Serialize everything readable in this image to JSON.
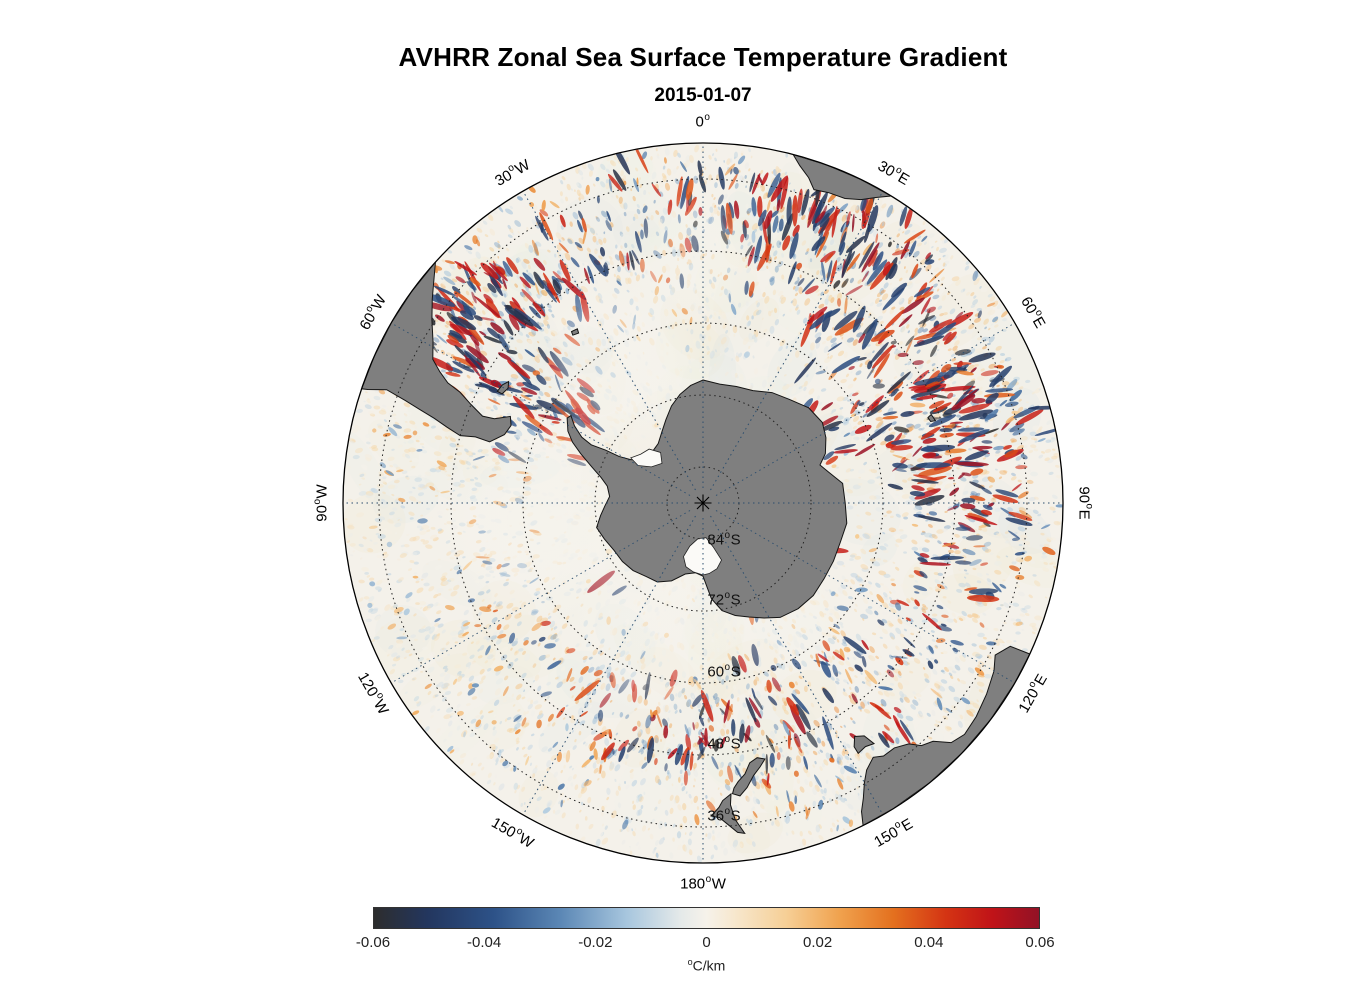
{
  "header": {
    "title": "AVHRR Zonal Sea Surface Temperature Gradient",
    "subtitle": "2015-01-07"
  },
  "chart_data": {
    "type": "heatmap",
    "title": "AVHRR Zonal Sea Surface Temperature Gradient",
    "subtitle": "2015-01-07",
    "projection": {
      "name": "south-polar-azimuthal-equidistant",
      "outer_lat_deg": -30,
      "lat_ring_spacing_deg": 12,
      "lon_spacing_deg": 30
    },
    "grid": {
      "lat_rings": [
        {
          "lat": -84,
          "label": "84°S"
        },
        {
          "lat": -72,
          "label": "72°S"
        },
        {
          "lat": -60,
          "label": "60°S"
        },
        {
          "lat": -48,
          "label": "48°S"
        },
        {
          "lat": -36,
          "label": "36°S"
        }
      ],
      "lon_labels": [
        {
          "deg": 0,
          "label": "0°"
        },
        {
          "deg": 30,
          "label": "30°E"
        },
        {
          "deg": 60,
          "label": "60°E"
        },
        {
          "deg": 90,
          "label": "90°E"
        },
        {
          "deg": 120,
          "label": "120°E"
        },
        {
          "deg": 150,
          "label": "150°E"
        },
        {
          "deg": 180,
          "label": "180°W"
        },
        {
          "deg": -150,
          "label": "150°W"
        },
        {
          "deg": -120,
          "label": "120°W"
        },
        {
          "deg": -90,
          "label": "90°W"
        },
        {
          "deg": -60,
          "label": "60°W"
        },
        {
          "deg": -30,
          "label": "30°W"
        }
      ],
      "meridian_color": "#2c4e6e",
      "ring_color": "#222222"
    },
    "colorbar": {
      "min": -0.06,
      "max": 0.06,
      "ticks": [
        "-0.06",
        "-0.04",
        "-0.02",
        "0",
        "0.02",
        "0.04",
        "0.06"
      ],
      "unit_sup": "o",
      "unit_main": "C/km",
      "stops": [
        [
          0.0,
          "#2d2d2d"
        ],
        [
          0.08,
          "#23365e"
        ],
        [
          0.18,
          "#2d5288"
        ],
        [
          0.28,
          "#5b87b5"
        ],
        [
          0.38,
          "#a7c6de"
        ],
        [
          0.46,
          "#e4e9e9"
        ],
        [
          0.5,
          "#f6f2ea"
        ],
        [
          0.54,
          "#f7e8cf"
        ],
        [
          0.62,
          "#f6cf96"
        ],
        [
          0.7,
          "#f0a24e"
        ],
        [
          0.78,
          "#e4711f"
        ],
        [
          0.86,
          "#d43413"
        ],
        [
          0.93,
          "#c01318"
        ],
        [
          1.0,
          "#921226"
        ]
      ]
    },
    "field": {
      "description": "Zonal SST gradient speckle field, diverging red/blue about zero",
      "seed": 20150107,
      "base": 0.3,
      "activity_zones": [
        {
          "name": "agulhas-return",
          "lon": 42,
          "lon_sigma": 28,
          "lat": -44,
          "lat_sigma": 7,
          "strength": 0.95
        },
        {
          "name": "southwest-indian",
          "lon": 68,
          "lon_sigma": 20,
          "lat": -51,
          "lat_sigma": 8,
          "strength": 0.7
        },
        {
          "name": "brazil-malvinas",
          "lon": -52,
          "lon_sigma": 9,
          "lat": -41,
          "lat_sigma": 6,
          "strength": 1.0
        },
        {
          "name": "drake-passage",
          "lon": -60,
          "lon_sigma": 11,
          "lat": -59,
          "lat_sigma": 5,
          "strength": 0.65
        },
        {
          "name": "pacific-antarctic",
          "lon": -140,
          "lon_sigma": 35,
          "lat": -57,
          "lat_sigma": 7,
          "strength": 0.35
        },
        {
          "name": "campbell-plateau",
          "lon": 172,
          "lon_sigma": 30,
          "lat": -52,
          "lat_sigma": 8,
          "strength": 0.5
        },
        {
          "name": "tasman-south",
          "lon": 140,
          "lon_sigma": 22,
          "lat": -48,
          "lat_sigma": 7,
          "strength": 0.45
        },
        {
          "name": "kerguelen-plateau",
          "lon": 78,
          "lon_sigma": 14,
          "lat": -46,
          "lat_sigma": 6,
          "strength": 0.6
        },
        {
          "name": "south-atlantic-mid",
          "lon": -20,
          "lon_sigma": 25,
          "lat": -42,
          "lat_sigma": 7,
          "strength": 0.45
        },
        {
          "name": "agulhas-south",
          "lon": 25,
          "lon_sigma": 15,
          "lat": -40,
          "lat_sigma": 5,
          "strength": 0.7
        }
      ],
      "pale_regions": [
        {
          "name": "bellingshausen-ice",
          "lon": -95,
          "lat": -63,
          "radius_px": 105,
          "alpha": 0.5
        },
        {
          "name": "ross-sea-ice",
          "lon": -160,
          "lat": -67,
          "radius_px": 85,
          "alpha": 0.4
        },
        {
          "name": "weddell-ice",
          "lon": -32,
          "lat": -63,
          "radius_px": 85,
          "alpha": 0.45
        },
        {
          "name": "east-antarctic-ice",
          "lon": 150,
          "lat": -68,
          "radius_px": 70,
          "alpha": 0.3
        },
        {
          "name": "polar-interior",
          "lon": 0,
          "lat": -90,
          "radius_px": 150,
          "alpha": 0.28
        },
        {
          "name": "greenwich-quiet",
          "lon": -2,
          "lat": -50,
          "radius_px": 70,
          "alpha": 0.35
        }
      ]
    },
    "land": {
      "fill": "#7f7f7f",
      "stroke": "#141414",
      "ocean": "#f4f1ea",
      "features": [
        {
          "name": "antarctica",
          "points": [
            [
              0,
              -69.5
            ],
            [
              8,
              -70
            ],
            [
              16,
              -69.8
            ],
            [
              24,
              -69.5
            ],
            [
              32,
              -68.3
            ],
            [
              40,
              -67.5
            ],
            [
              48,
              -66.3
            ],
            [
              56,
              -66
            ],
            [
              62,
              -66.8
            ],
            [
              68,
              -68
            ],
            [
              72,
              -69.5
            ],
            [
              76,
              -68.5
            ],
            [
              82,
              -66.5
            ],
            [
              90,
              -66.3
            ],
            [
              98,
              -65.8
            ],
            [
              106,
              -66.2
            ],
            [
              114,
              -66.2
            ],
            [
              122,
              -66.2
            ],
            [
              130,
              -66
            ],
            [
              138,
              -66.3
            ],
            [
              146,
              -67
            ],
            [
              152,
              -68.3
            ],
            [
              158,
              -69.5
            ],
            [
              164,
              -70.5
            ],
            [
              170,
              -71.8
            ],
            [
              175,
              -74
            ],
            [
              180,
              -77.8
            ],
            [
              -174,
              -78.3
            ],
            [
              -166,
              -77.8
            ],
            [
              -158,
              -76
            ],
            [
              -150,
              -74.8
            ],
            [
              -142,
              -74.5
            ],
            [
              -134,
              -73.8
            ],
            [
              -126,
              -73.4
            ],
            [
              -118,
              -73.2
            ],
            [
              -110,
              -72.5
            ],
            [
              -103,
              -71.8
            ],
            [
              -97,
              -72.8
            ],
            [
              -92,
              -73.6
            ],
            [
              -86,
              -74.4
            ],
            [
              -80,
              -73.8
            ],
            [
              -76,
              -72.5
            ],
            [
              -72,
              -70.5
            ],
            [
              -68,
              -68
            ],
            [
              -65,
              -66
            ],
            [
              -62,
              -64.5
            ],
            [
              -58,
              -63.3
            ],
            [
              -56.5,
              -63.6
            ],
            [
              -59,
              -65
            ],
            [
              -61.5,
              -67
            ],
            [
              -62.5,
              -69
            ],
            [
              -61.5,
              -71.5
            ],
            [
              -61,
              -74
            ],
            [
              -59,
              -76
            ],
            [
              -53,
              -77.5
            ],
            [
              -45,
              -78
            ],
            [
              -37,
              -77.6
            ],
            [
              -30,
              -76.3
            ],
            [
              -24,
              -74.8
            ],
            [
              -18,
              -73
            ],
            [
              -12,
              -71.5
            ],
            [
              -6,
              -70.3
            ]
          ]
        },
        {
          "name": "south-america",
          "points": [
            [
              -48,
              -30
            ],
            [
              -50,
              -31.5
            ],
            [
              -53,
              -33.5
            ],
            [
              -56,
              -35.5
            ],
            [
              -59,
              -37.5
            ],
            [
              -62,
              -39
            ],
            [
              -63.5,
              -41
            ],
            [
              -64.8,
              -43
            ],
            [
              -65.5,
              -45.5
            ],
            [
              -67,
              -48
            ],
            [
              -68.5,
              -50.5
            ],
            [
              -68,
              -52.5
            ],
            [
              -65.8,
              -54.8
            ],
            [
              -68,
              -55.5
            ],
            [
              -71,
              -55
            ],
            [
              -74,
              -53
            ],
            [
              -73.8,
              -50.5
            ],
            [
              -74.5,
              -48
            ],
            [
              -73.5,
              -45.5
            ],
            [
              -72.5,
              -43
            ],
            [
              -71.8,
              -40.5
            ],
            [
              -71,
              -37.5
            ],
            [
              -70.3,
              -34
            ],
            [
              -71.3,
              -31
            ],
            [
              -71.5,
              -30
            ],
            [
              -66,
              -30
            ],
            [
              -60,
              -30
            ],
            [
              -54,
              -30
            ]
          ]
        },
        {
          "name": "falkland-islands",
          "points": [
            [
              -61.5,
              -51
            ],
            [
              -59.5,
              -51.2
            ],
            [
              -58,
              -51.8
            ],
            [
              -59.5,
              -52.3
            ],
            [
              -61.5,
              -51.9
            ]
          ]
        },
        {
          "name": "south-georgia",
          "points": [
            [
              -37.5,
              -54
            ],
            [
              -35.8,
              -54.2
            ],
            [
              -36.2,
              -54.9
            ],
            [
              -37.8,
              -54.6
            ]
          ]
        },
        {
          "name": "africa",
          "points": [
            [
              14.5,
              -30
            ],
            [
              16,
              -31.5
            ],
            [
              18,
              -33
            ],
            [
              19.5,
              -34.6
            ],
            [
              22,
              -34.2
            ],
            [
              25,
              -34
            ],
            [
              27.5,
              -33
            ],
            [
              29.5,
              -31.5
            ],
            [
              31.5,
              -30
            ],
            [
              26,
              -30
            ],
            [
              20,
              -30
            ]
          ]
        },
        {
          "name": "australia",
          "points": [
            [
              114.8,
              -30
            ],
            [
              115,
              -33.5
            ],
            [
              117.5,
              -35.1
            ],
            [
              120,
              -34
            ],
            [
              124,
              -33
            ],
            [
              128,
              -32.2
            ],
            [
              131.5,
              -31.8
            ],
            [
              134,
              -32.5
            ],
            [
              136,
              -34.8
            ],
            [
              138,
              -35.6
            ],
            [
              139.5,
              -37.2
            ],
            [
              142,
              -38.2
            ],
            [
              144.5,
              -38.2
            ],
            [
              146.2,
              -39
            ],
            [
              148.5,
              -37.8
            ],
            [
              150,
              -36.2
            ],
            [
              151.5,
              -34
            ],
            [
              152.8,
              -32.2
            ],
            [
              153.6,
              -30
            ],
            [
              148,
              -30
            ],
            [
              141,
              -30
            ],
            [
              134,
              -30
            ],
            [
              127,
              -30
            ],
            [
              120,
              -30
            ]
          ]
        },
        {
          "name": "tasmania",
          "points": [
            [
              144.6,
              -40.8
            ],
            [
              146.3,
              -41.2
            ],
            [
              148.2,
              -40.9
            ],
            [
              148.2,
              -42.2
            ],
            [
              147,
              -43.6
            ],
            [
              145.3,
              -42.8
            ]
          ]
        },
        {
          "name": "new-zealand-south-island",
          "points": [
            [
              166.4,
              -46.1
            ],
            [
              168,
              -46.6
            ],
            [
              169.8,
              -46
            ],
            [
              171.2,
              -44.3
            ],
            [
              172.8,
              -43.2
            ],
            [
              173.8,
              -42.2
            ],
            [
              174.2,
              -41.3
            ],
            [
              172.8,
              -40.8
            ],
            [
              171.2,
              -42
            ],
            [
              169.5,
              -43.8
            ],
            [
              167.8,
              -45
            ]
          ]
        },
        {
          "name": "new-zealand-north-island",
          "points": [
            [
              174.5,
              -41.3
            ],
            [
              176.2,
              -40.3
            ],
            [
              177,
              -39.2
            ],
            [
              178.5,
              -37.8
            ],
            [
              177,
              -37.5
            ],
            [
              175.5,
              -36.2
            ],
            [
              174,
              -34.8
            ],
            [
              172.8,
              -34.5
            ],
            [
              174.2,
              -37
            ],
            [
              174.8,
              -39.5
            ]
          ]
        },
        {
          "name": "kerguelen-island",
          "points": [
            [
              68.8,
              -49.2
            ],
            [
              70.5,
              -48.9
            ],
            [
              70.3,
              -49.7
            ],
            [
              69.2,
              -49.9
            ]
          ]
        }
      ],
      "ice_shelves": [
        {
          "name": "ross-ice-shelf",
          "points": [
            [
              162,
              -80
            ],
            [
              168,
              -78.8
            ],
            [
              175,
              -78.2
            ],
            [
              180,
              -78
            ],
            [
              -172,
              -78.4
            ],
            [
              -165,
              -79
            ],
            [
              -160,
              -80.5
            ],
            [
              -163,
              -82.5
            ],
            [
              -172,
              -84
            ],
            [
              175,
              -84.2
            ],
            [
              167,
              -82.5
            ]
          ]
        },
        {
          "name": "ronne-ice-shelf",
          "points": [
            [
              -58,
              -75.8
            ],
            [
              -52,
              -76.8
            ],
            [
              -45,
              -77.3
            ],
            [
              -40,
              -79
            ],
            [
              -46,
              -80.5
            ],
            [
              -55,
              -79.5
            ],
            [
              -60,
              -77.5
            ]
          ]
        }
      ]
    }
  }
}
